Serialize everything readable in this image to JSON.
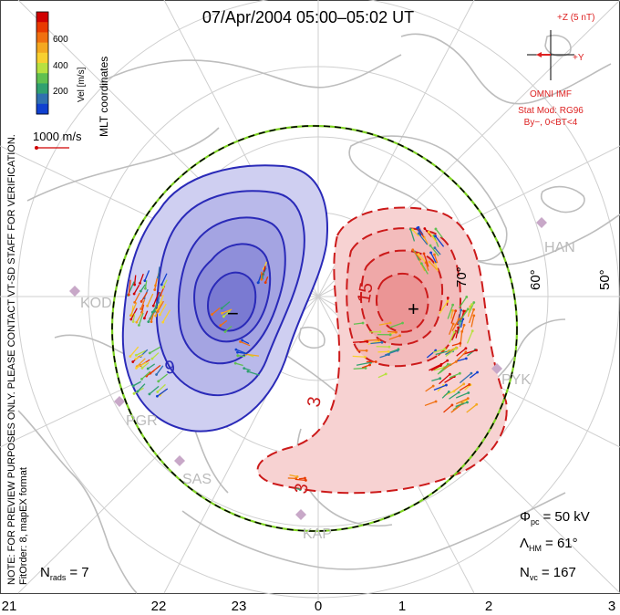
{
  "title": "07/Apr/2004 05:00–05:02 UT",
  "color_scale": {
    "label": "Vel [m/s]",
    "ticks": [
      "600",
      "400",
      "200"
    ],
    "colors": [
      "#d00000",
      "#e83a00",
      "#f07010",
      "#f4a820",
      "#f8d030",
      "#b8e040",
      "#60c050",
      "#30a070",
      "#3070b0",
      "#1040d0"
    ]
  },
  "coord_label": "MLT coordinates",
  "reference_vector": "1000 m/s",
  "imf": {
    "z_label": "+Z (5 nT)",
    "y_label": "+Y",
    "source": "OMNI IMF",
    "model": "Stat Mod: RG96",
    "condition": "By−, 0<BT<4"
  },
  "watermark": "NOTE: FOR PREVIEW PURPOSES ONLY. PLEASE CONTACT VT-SD STAFF FOR VERIFICATION.",
  "fit_order": "FitOrder: 8, mapEX format",
  "stations": [
    "HAN",
    "KOD",
    "PYK",
    "PGR",
    "SAS",
    "KAP"
  ],
  "lat_labels": [
    "70°",
    "60°",
    "50°"
  ],
  "contour_labels": {
    "neg": "9",
    "pos1": "15",
    "pos2": "3",
    "pos3": "3"
  },
  "markers": {
    "min": "−",
    "max": "+"
  },
  "stats": {
    "phi_label": "Φ",
    "phi_sub": "pc",
    "phi_value": "= 50 kV",
    "lambda_label": "Λ",
    "lambda_sub": "HM",
    "lambda_value": "= 61°",
    "nvc_label": "N",
    "nvc_sub": "vc",
    "nvc_value": "= 167",
    "nrads_label": "N",
    "nrads_sub": "rads",
    "nrads_value": "= 7"
  },
  "mlt_ticks": [
    "21",
    "22",
    "23",
    "0",
    "1",
    "2",
    "3"
  ],
  "colors": {
    "negative_fill": "#c8c8ee",
    "negative_line": "#2a2ab8",
    "positive_fill": "#f6c8c8",
    "positive_line": "#cc1a1a",
    "boundary_green": "#7ed321",
    "grid": "#cccccc",
    "coast": "#bbbbbb",
    "imf_red": "#dd2222"
  }
}
